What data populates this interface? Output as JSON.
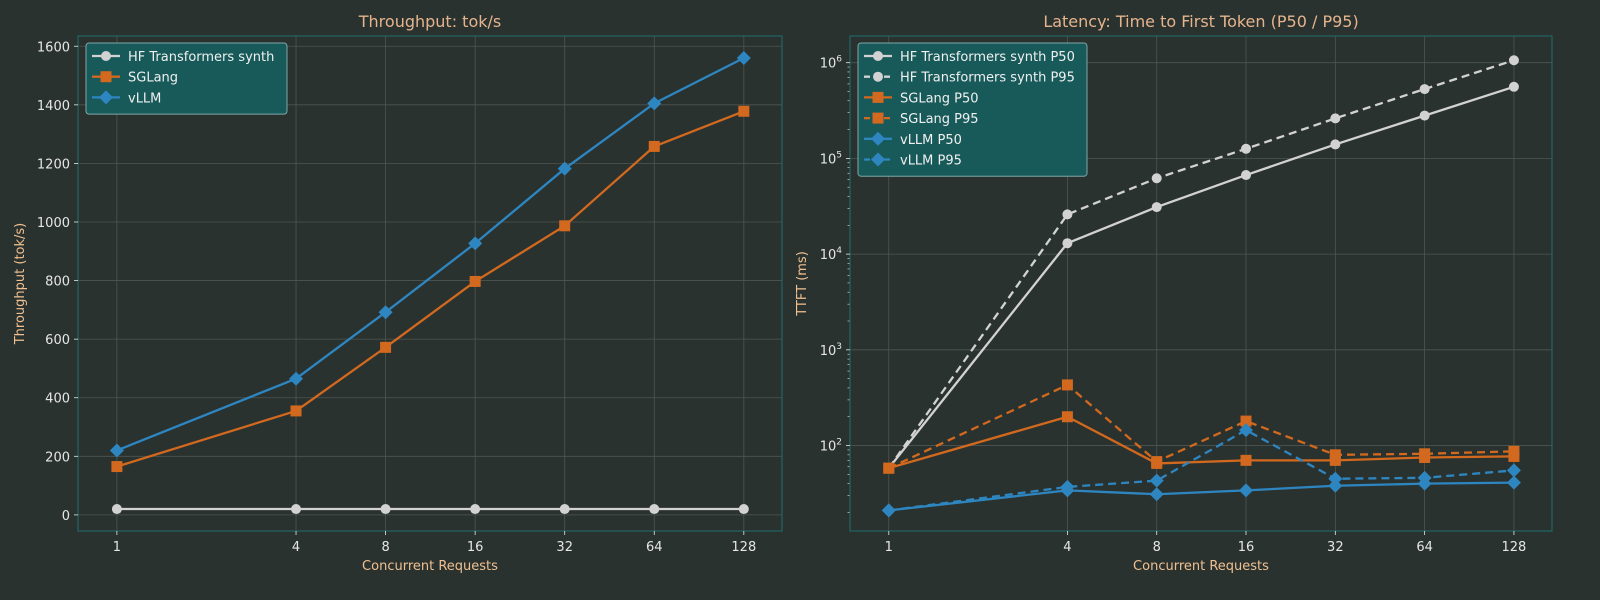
{
  "colors": {
    "background": "#2a3230",
    "title": "#e6b48c",
    "axis_label": "#f0c090",
    "tick_label": "#e6e6e6",
    "grid": "#4e5652",
    "spine": "#1d6e6e",
    "legend_bg": "#185a5a",
    "legend_border": "#7fa8a8",
    "legend_text": "#f0f0f0"
  },
  "chart_data": [
    {
      "type": "line",
      "title": "Throughput: tok/s",
      "xlabel": "Concurrent Requests",
      "ylabel": "Throughput (tok/s)",
      "x_scale": "log2",
      "y_scale": "linear",
      "categories": [
        "1",
        "4",
        "8",
        "16",
        "32",
        "64",
        "128"
      ],
      "x": [
        1,
        4,
        8,
        16,
        32,
        64,
        128
      ],
      "xlim": [
        0.74,
        172
      ],
      "ylim": [
        -55,
        1635
      ],
      "yticks": [
        0,
        200,
        400,
        600,
        800,
        1000,
        1200,
        1400,
        1600
      ],
      "grid": true,
      "legend_position": "top-left",
      "series": [
        {
          "name": "HF Transformers synth",
          "color": "#d2d2d2",
          "marker": "circle",
          "dash": "solid",
          "values": [
            20,
            20,
            20,
            20,
            20,
            20,
            20
          ]
        },
        {
          "name": "SGLang",
          "color": "#d2691e",
          "marker": "square",
          "dash": "solid",
          "values": [
            165,
            355,
            572,
            797,
            987,
            1258,
            1378
          ]
        },
        {
          "name": "vLLM",
          "color": "#2e86c1",
          "marker": "diamond",
          "dash": "solid",
          "values": [
            220,
            465,
            692,
            927,
            1182,
            1405,
            1560
          ]
        }
      ]
    },
    {
      "type": "line",
      "title": "Latency: Time to First Token (P50 / P95)",
      "xlabel": "Concurrent Requests",
      "ylabel": "TTFT (ms)",
      "x_scale": "log2",
      "y_scale": "log10",
      "categories": [
        "1",
        "4",
        "8",
        "16",
        "32",
        "64",
        "128"
      ],
      "x": [
        1,
        4,
        8,
        16,
        32,
        64,
        128
      ],
      "xlim": [
        0.74,
        172
      ],
      "ylim": [
        12.8,
        1900000
      ],
      "yticks": [
        100,
        1000,
        10000,
        100000,
        1000000
      ],
      "ytick_labels": [
        {
          "base": "10",
          "exp": "2"
        },
        {
          "base": "10",
          "exp": "3"
        },
        {
          "base": "10",
          "exp": "4"
        },
        {
          "base": "10",
          "exp": "5"
        },
        {
          "base": "10",
          "exp": "6"
        }
      ],
      "grid": true,
      "legend_position": "top-left",
      "series": [
        {
          "name": "HF Transformers synth P50",
          "color": "#d2d2d2",
          "marker": "circle",
          "dash": "solid",
          "values": [
            58,
            13000,
            31000,
            67000,
            140000,
            280000,
            560000
          ]
        },
        {
          "name": "HF Transformers synth P95",
          "color": "#d2d2d2",
          "marker": "circle",
          "dash": "dashed",
          "values": [
            58,
            26000,
            62000,
            126000,
            262000,
            530000,
            1060000
          ]
        },
        {
          "name": "SGLang P50",
          "color": "#d2691e",
          "marker": "square",
          "dash": "solid",
          "values": [
            58,
            200,
            65,
            70,
            70,
            75,
            77
          ]
        },
        {
          "name": "SGLang P95",
          "color": "#d2691e",
          "marker": "square",
          "dash": "dashed",
          "values": [
            58,
            430,
            68,
            180,
            80,
            82,
            87
          ]
        },
        {
          "name": "vLLM P50",
          "color": "#2e86c1",
          "marker": "diamond",
          "dash": "solid",
          "values": [
            21,
            34,
            31,
            34,
            38,
            40,
            41
          ]
        },
        {
          "name": "vLLM P95",
          "color": "#2e86c1",
          "marker": "diamond",
          "dash": "dashed",
          "values": [
            21,
            37,
            43,
            145,
            45,
            46,
            55
          ]
        }
      ]
    }
  ]
}
